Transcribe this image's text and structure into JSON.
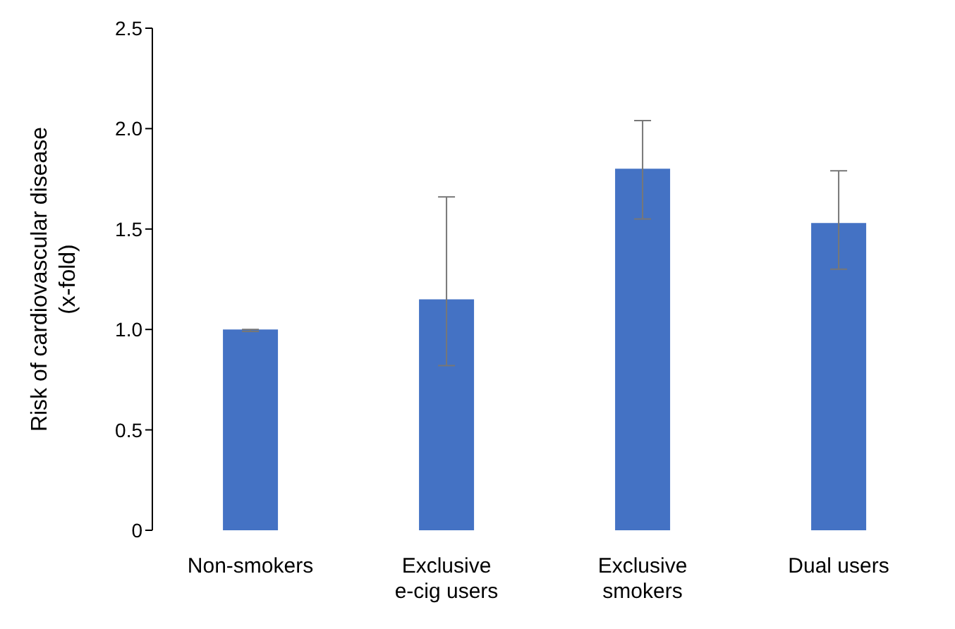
{
  "chart_data": {
    "type": "bar",
    "ylabel": "Risk of cardiovascular disease (x-fold)",
    "categories": [
      "Non-smokers",
      "Exclusive e-cig users",
      "Exclusive smokers",
      "Dual users"
    ],
    "values": [
      1.0,
      1.15,
      1.8,
      1.53
    ],
    "errors": [
      [
        0.99,
        1.0
      ],
      [
        0.82,
        1.66
      ],
      [
        1.55,
        2.04
      ],
      [
        1.3,
        1.79
      ]
    ],
    "color": "#4472c4",
    "ylim": [
      0,
      2.5
    ],
    "yticks": [
      0,
      0.5,
      {
        "value": 1,
        "label": "1.0"
      },
      1.5,
      {
        "value": 2,
        "label": "2.0"
      },
      2.5
    ],
    "grid": false
  }
}
